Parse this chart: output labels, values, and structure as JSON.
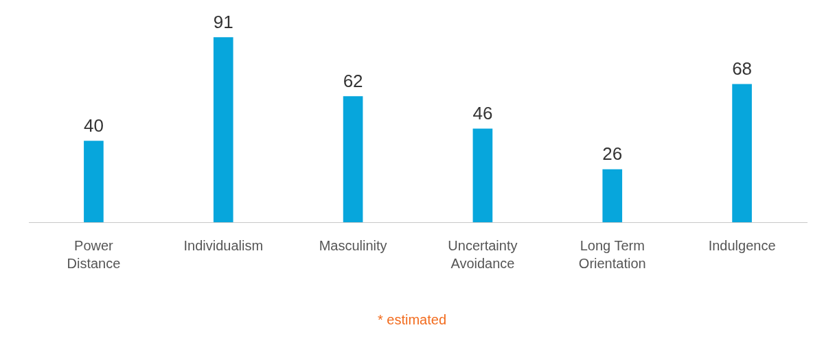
{
  "chart_data": {
    "type": "bar",
    "categories": [
      "Power\nDistance",
      "Individualism",
      "Masculinity",
      "Uncertainty\nAvoidance",
      "Long Term\nOrientation",
      "Indulgence"
    ],
    "values": [
      40,
      91,
      62,
      46,
      26,
      68
    ],
    "color": "#07a6dc",
    "data_labels": true,
    "grid": false,
    "legend": false,
    "tick_labels": "x",
    "annotations": [
      "* estimated"
    ]
  }
}
